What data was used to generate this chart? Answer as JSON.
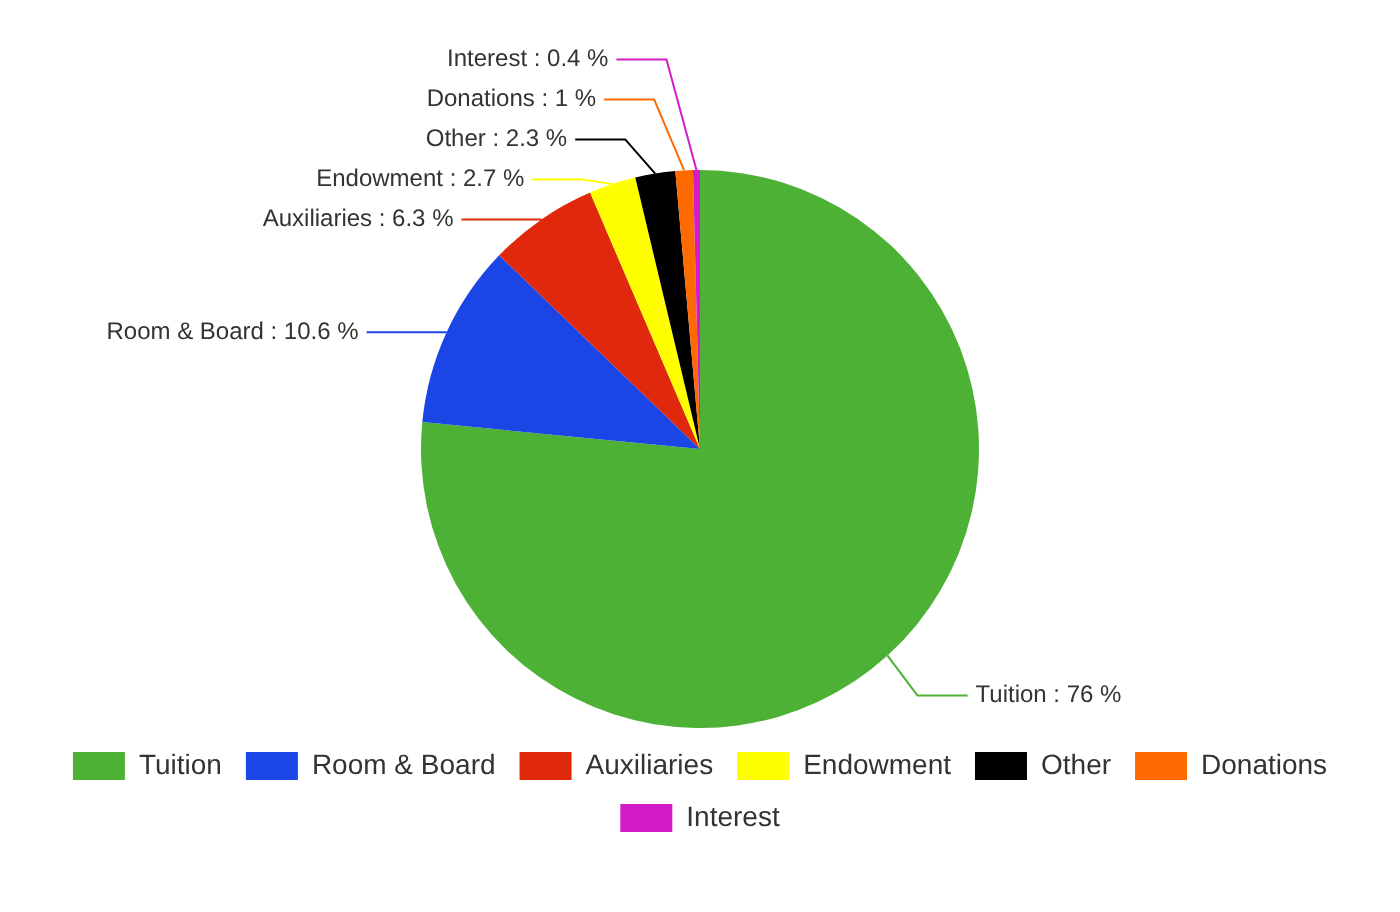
{
  "chart_data": {
    "type": "pie",
    "categories": [
      "Tuition",
      "Room & Board",
      "Auxiliaries",
      "Endowment",
      "Other",
      "Donations",
      "Interest"
    ],
    "values": [
      76,
      10.6,
      6.3,
      2.7,
      2.3,
      1,
      0.4
    ],
    "colors": [
      "#4db135",
      "#1c45e6",
      "#e0290c",
      "#ffff00",
      "#000000",
      "#ff6a00",
      "#d41bc9"
    ],
    "value_labels": [
      "Tuition : 76 %",
      "Room & Board : 10.6 %",
      "Auxiliaries : 6.3 %",
      "Endowment : 2.7 %",
      "Other : 2.3 %",
      "Donations : 1 %",
      "Interest : 0.4 %"
    ],
    "legend": "bottom"
  }
}
